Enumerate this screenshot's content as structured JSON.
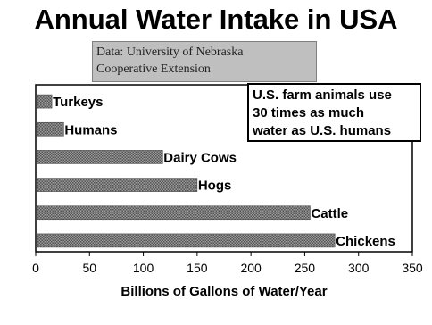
{
  "chart_data": {
    "type": "bar",
    "orientation": "horizontal",
    "title": "Annual Water Intake in USA",
    "xlabel": "Billions of Gallons of Water/Year",
    "ylabel": "",
    "categories": [
      "Turkeys",
      "Humans",
      "Dairy Cows",
      "Hogs",
      "Cattle",
      "Chickens"
    ],
    "values": [
      15,
      26,
      118,
      150,
      255,
      278
    ],
    "xlim": [
      0,
      350
    ],
    "xticks": [
      "0",
      "50",
      "100",
      "150",
      "200",
      "250",
      "300",
      "350"
    ],
    "grid": false,
    "bar_fill": "hatched-gray"
  },
  "source": {
    "lines": [
      "Data: University of Nebraska",
      "Cooperative Extension"
    ]
  },
  "note": {
    "lines": [
      "U.S. farm animals use",
      "30 times as much",
      "water as U.S. humans"
    ]
  },
  "colors": {
    "bar": "#7a7a7a",
    "bar_border": "#4a4a4a",
    "source_bg": "#bfbfbf"
  }
}
